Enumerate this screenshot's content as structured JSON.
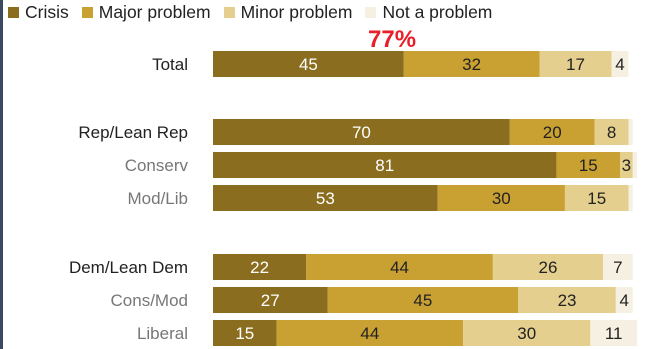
{
  "annotation": "77%",
  "chart_data": {
    "type": "bar",
    "orientation": "horizontal",
    "stacked": true,
    "legend": [
      {
        "name": "Crisis",
        "color": "#8a6d1f"
      },
      {
        "name": "Major problem",
        "color": "#c9a132"
      },
      {
        "name": "Minor problem",
        "color": "#e4cf8e"
      },
      {
        "name": "Not a problem",
        "color": "#f5f0e1"
      }
    ],
    "categories": [
      "Total",
      "Rep/Lean Rep",
      "Conserv",
      "Mod/Lib",
      "Dem/Lean Dem",
      "Cons/Mod",
      "Liberal"
    ],
    "series": [
      {
        "name": "Crisis",
        "values": [
          45,
          70,
          81,
          53,
          22,
          27,
          15
        ]
      },
      {
        "name": "Major problem",
        "values": [
          32,
          20,
          15,
          30,
          44,
          45,
          44
        ]
      },
      {
        "name": "Minor problem",
        "values": [
          17,
          8,
          3,
          15,
          26,
          23,
          30
        ]
      },
      {
        "name": "Not a problem",
        "values": [
          4,
          1,
          1,
          1,
          7,
          4,
          11
        ]
      }
    ],
    "labels": [
      [
        "45",
        "32",
        "17",
        "4"
      ],
      [
        "70",
        "20",
        "8",
        ""
      ],
      [
        "81",
        "15",
        "3",
        ""
      ],
      [
        "53",
        "30",
        "15",
        ""
      ],
      [
        "22",
        "44",
        "26",
        "7"
      ],
      [
        "27",
        "45",
        "23",
        "4"
      ],
      [
        "15",
        "44",
        "30",
        "11"
      ]
    ],
    "subgroups": [
      false,
      false,
      true,
      true,
      false,
      true,
      true
    ],
    "xlim": [
      0,
      100
    ]
  }
}
